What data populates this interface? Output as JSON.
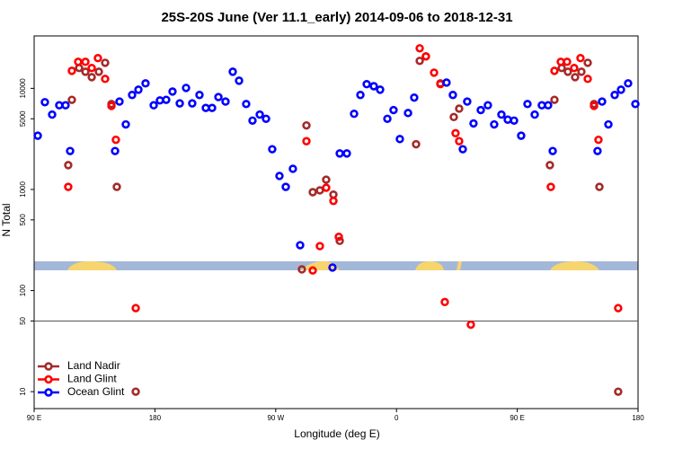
{
  "chart_data": {
    "type": "scatter",
    "title": "25S-20S June (Ver 11.1_early)   2014-09-06 to 2018-12-31",
    "x_label": "Longitude (deg E)",
    "y_label": "N Total",
    "y_log": true,
    "legend": "bottom-left",
    "hline": 50,
    "xlim": [
      90,
      540
    ],
    "xticks": [
      {
        "value": 90,
        "label": "90 E"
      },
      180,
      {
        "value": 270,
        "label": "90 W"
      },
      {
        "value": 360,
        "label": "0"
      },
      {
        "value": 450,
        "label": "90 E"
      },
      {
        "value": 540,
        "label": "180"
      }
    ],
    "ylim": [
      6.8,
      33000
    ],
    "yticks": [
      10,
      50,
      100,
      500,
      1000,
      5000,
      10000
    ],
    "series": [
      {
        "name": "Land Nadir",
        "color": "#a52a2a",
        "x": [
          115.4,
          118.1,
          123.5,
          128.2,
          132.9,
          138.2,
          142.9,
          147.6,
          151.6,
          165.7,
          289.5,
          292.9,
          297.6,
          302.9,
          307.6,
          313.0,
          317.7,
          374.6,
          377.3,
          381.9,
          392.7,
          402.7,
          406.7,
          474.3,
          477.7,
          483.1,
          487.7,
          493.1,
          497.8,
          502.5,
          507.2,
          511.2,
          525.2
        ],
        "values": [
          1740,
          7700,
          15900,
          14600,
          12900,
          14600,
          17900,
          7000,
          1060,
          10,
          162,
          4300,
          940,
          980,
          1250,
          890,
          310,
          2800,
          18700,
          20700,
          11200,
          5200,
          6300,
          1740,
          7700,
          15900,
          14600,
          12900,
          14600,
          17900,
          7000,
          1060,
          10
        ]
      },
      {
        "name": "Land Glint",
        "color": "#ff0000",
        "x": [
          115.4,
          118.1,
          122.8,
          128.2,
          132.9,
          137.5,
          142.9,
          147.6,
          150.9,
          165.7,
          292.9,
          297.6,
          302.9,
          307.6,
          313.0,
          317.0,
          377.3,
          381.9,
          388.0,
          392.7,
          396.0,
          404.0,
          406.7,
          415.4,
          475.0,
          477.7,
          482.4,
          487.1,
          492.4,
          497.1,
          502.5,
          507.2,
          510.5,
          525.2
        ],
        "values": [
          1060,
          14900,
          18300,
          18300,
          15900,
          19900,
          12400,
          6700,
          3100,
          67,
          3000,
          158,
          275,
          1040,
          770,
          340,
          24900,
          20700,
          14300,
          11000,
          77,
          3600,
          3000,
          46,
          1060,
          14900,
          18300,
          18300,
          15900,
          19900,
          12400,
          6700,
          3100,
          67
        ]
      },
      {
        "name": "Ocean Glint",
        "color": "#0000ff",
        "x": [
          92.7,
          98.0,
          103.4,
          108.7,
          113.4,
          116.8,
          150.3,
          153.6,
          158.3,
          163.0,
          167.7,
          173.0,
          179.1,
          183.7,
          188.4,
          193.1,
          198.5,
          203.2,
          207.8,
          213.2,
          217.9,
          222.6,
          227.3,
          232.6,
          238.0,
          242.7,
          248.0,
          252.7,
          258.1,
          262.8,
          267.4,
          272.8,
          277.5,
          282.8,
          288.2,
          312.3,
          317.7,
          323.0,
          328.4,
          333.1,
          337.8,
          343.1,
          347.8,
          353.2,
          357.8,
          362.5,
          368.6,
          373.2,
          397.3,
          402.0,
          409.4,
          412.7,
          417.4,
          422.8,
          428.1,
          432.8,
          438.2,
          442.9,
          447.6,
          452.9,
          457.6,
          463.0,
          468.3,
          473.0,
          476.4,
          509.8,
          513.2,
          517.9,
          522.6,
          527.3,
          532.6,
          538.0
        ],
        "values": [
          3400,
          7300,
          5500,
          6800,
          6800,
          2400,
          2400,
          7400,
          4400,
          8600,
          9700,
          11200,
          6800,
          7600,
          7700,
          9300,
          7100,
          10100,
          7100,
          8600,
          6400,
          6400,
          8200,
          7400,
          14600,
          11900,
          7000,
          4800,
          5500,
          5000,
          2500,
          1360,
          1060,
          1600,
          281,
          169,
          2270,
          2270,
          5600,
          8600,
          11000,
          10500,
          9700,
          5000,
          6100,
          3150,
          5700,
          8100,
          11400,
          8600,
          2500,
          7400,
          4500,
          6100,
          6800,
          4400,
          5500,
          4900,
          4800,
          3400,
          7000,
          5500,
          6800,
          6800,
          2400,
          2400,
          7400,
          4400,
          8600,
          9700,
          11200,
          7000
        ]
      }
    ]
  }
}
